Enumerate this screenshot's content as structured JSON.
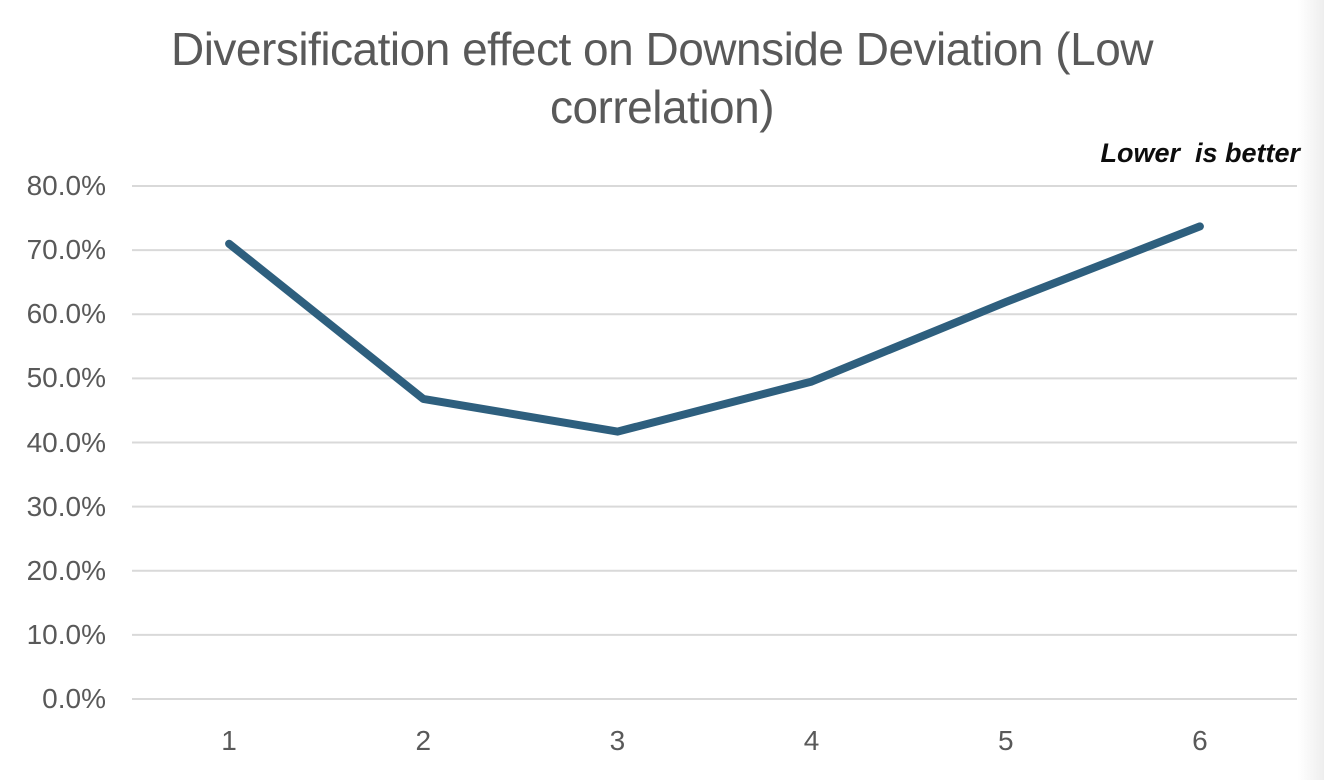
{
  "chart_data": {
    "type": "line",
    "title": "Diversification effect on Downside Deviation (Low correlation)",
    "title_lines": [
      "Diversification effect on Downside Deviation (Low",
      "correlation)"
    ],
    "annotation": "Lower  is better",
    "categories": [
      "1",
      "2",
      "3",
      "4",
      "5",
      "6"
    ],
    "values": [
      71.0,
      46.8,
      41.7,
      49.5,
      61.9,
      73.7
    ],
    "value_unit": "percent",
    "xlabel": "",
    "ylabel": "",
    "ylim": [
      0,
      80
    ],
    "ytick_step": 10,
    "ytick_labels": [
      "0.0%",
      "10.0%",
      "20.0%",
      "30.0%",
      "40.0%",
      "50.0%",
      "60.0%",
      "70.0%",
      "80.0%"
    ],
    "grid": "horizontal",
    "legend": "none",
    "colors": {
      "line": "#2E5F7E",
      "gridline": "#D9D9D9",
      "title_text": "#595959",
      "axis_text": "#595959",
      "annotation_text": "#0D0D0D",
      "background": "#FFFFFF"
    }
  }
}
